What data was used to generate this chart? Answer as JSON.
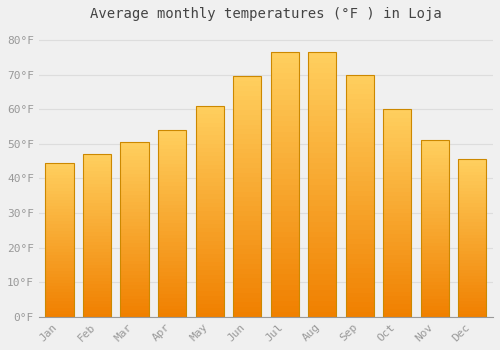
{
  "title": "Average monthly temperatures (°F ) in Loja",
  "months": [
    "Jan",
    "Feb",
    "Mar",
    "Apr",
    "May",
    "Jun",
    "Jul",
    "Aug",
    "Sep",
    "Oct",
    "Nov",
    "Dec"
  ],
  "values": [
    44.5,
    47,
    50.5,
    54,
    61,
    69.5,
    76.5,
    76.5,
    70,
    60,
    51,
    45.5
  ],
  "bar_color": "#FFA500",
  "bar_edge_color": "#CC8800",
  "background_color": "#F0F0F0",
  "grid_color": "#DDDDDD",
  "title_fontsize": 10,
  "tick_fontsize": 8,
  "yticks": [
    0,
    10,
    20,
    30,
    40,
    50,
    60,
    70,
    80
  ],
  "ylim": [
    0,
    84
  ],
  "ylabel_suffix": "°F",
  "tick_color": "#999999",
  "title_color": "#444444"
}
